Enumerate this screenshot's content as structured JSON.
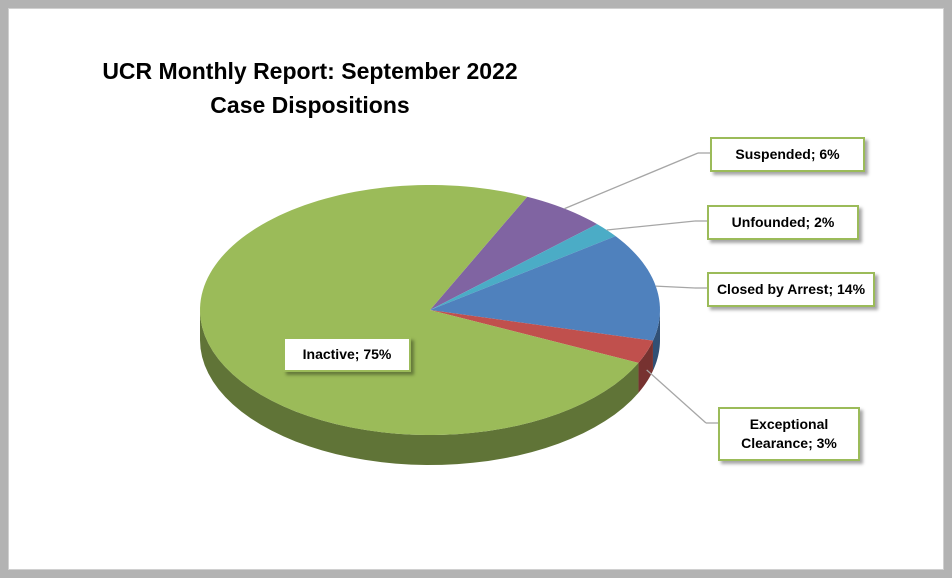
{
  "chart_data": {
    "type": "pie",
    "title": "UCR Monthly Report: September 2022",
    "subtitle": "Case Dispositions",
    "categories": [
      "Suspended",
      "Unfounded",
      "Closed by Arrest",
      "Exceptional Clearance",
      "Inactive"
    ],
    "values": [
      6,
      2,
      14,
      3,
      75
    ],
    "value_labels": [
      "6%",
      "2%",
      "14%",
      "3%",
      "75%"
    ],
    "label_separator": "; ",
    "colors": [
      "#8064a2",
      "#4bacc6",
      "#4f81bd",
      "#c0504d",
      "#9bbb59"
    ]
  }
}
